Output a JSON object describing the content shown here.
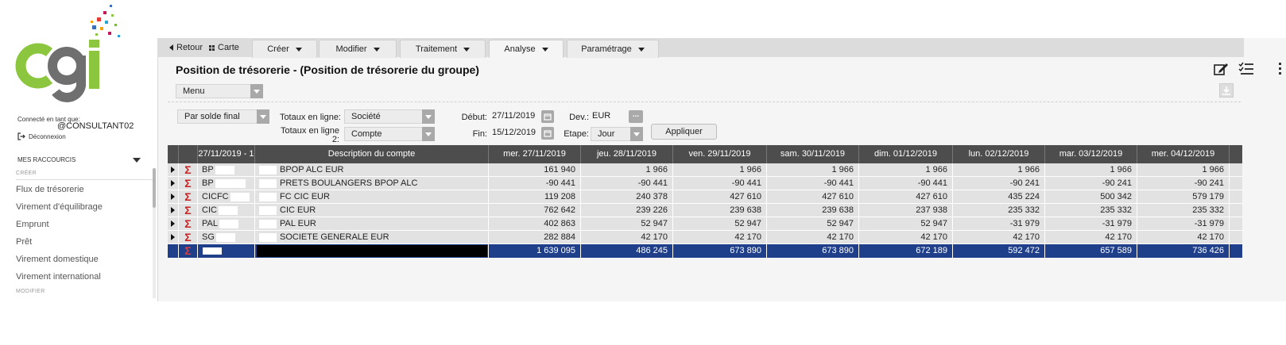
{
  "sidebar": {
    "connected_label": "Connecté en tant que:",
    "user": "@CONSULTANT02",
    "logout": "Déconnexion",
    "shortcuts_title": "MES RACCOURCIS",
    "section_create": "CRÉER",
    "links": [
      "Flux de trésorerie",
      "Virement d'équilibrage",
      "Emprunt",
      "Prêt",
      "Virement domestique",
      "Virement international"
    ],
    "section_modify": "MODIFIER"
  },
  "nav": {
    "back": "Retour",
    "carte": "Carte",
    "tabs": [
      "Créer",
      "Modifier",
      "Traitement",
      "Analyse",
      "Paramétrage"
    ]
  },
  "page": {
    "title": "Position de trésorerie - (Position de trésorerie du groupe)",
    "menu_select": "Menu"
  },
  "filters": {
    "balance_select": "Par solde final",
    "totals_line1_label": "Totaux en ligne:",
    "totals_line1_value": "Société",
    "totals_line2_label_a": "Totaux en ligne",
    "totals_line2_label_b": "2:",
    "totals_line2_value": "Compte",
    "start_label": "Début:",
    "start_value": "27/11/2019",
    "end_label": "Fin:",
    "end_value": "15/12/2019",
    "currency_label": "Dev.:",
    "currency_value": "EUR",
    "step_label": "Etape:",
    "step_value": "Jour",
    "dots": "...",
    "apply": "Appliquer"
  },
  "table": {
    "headers": [
      "27/11/2019 - 1",
      "Description du compte",
      "mer. 27/11/2019",
      "jeu. 28/11/2019",
      "ven. 29/11/2019",
      "sam. 30/11/2019",
      "dim. 01/12/2019",
      "lun. 02/12/2019",
      "mar. 03/12/2019",
      "mer. 04/12/2019"
    ],
    "rows": [
      {
        "code": "BP",
        "desc": "BPOP ALC EUR",
        "values": [
          "161 940",
          "1 966",
          "1 966",
          "1 966",
          "1 966",
          "1 966",
          "1 966",
          "1 966"
        ]
      },
      {
        "code": "BP",
        "desc": "PRETS BOULANGERS BPOP ALC",
        "values": [
          "-90 441",
          "-90 441",
          "-90 441",
          "-90 441",
          "-90 441",
          "-90 241",
          "-90 241",
          "-90 241"
        ]
      },
      {
        "code": "CICFC",
        "desc": "FC CIC EUR",
        "values": [
          "119 208",
          "240 378",
          "427 610",
          "427 610",
          "427 610",
          "435 224",
          "500 342",
          "579 179"
        ]
      },
      {
        "code": "CIC",
        "desc": "CIC EUR",
        "values": [
          "762 642",
          "239 226",
          "239 638",
          "239 638",
          "237 938",
          "235 332",
          "235 332",
          "235 332"
        ]
      },
      {
        "code": "PAL",
        "desc": "PAL EUR",
        "values": [
          "402 863",
          "52 947",
          "52 947",
          "52 947",
          "52 947",
          "-31 979",
          "-31 979",
          "-31 979"
        ]
      },
      {
        "code": "SG",
        "desc": "SOCIETE GENERALE EUR",
        "values": [
          "282 884",
          "42 170",
          "42 170",
          "42 170",
          "42 170",
          "42 170",
          "42 170",
          "42 170"
        ]
      }
    ],
    "total": [
      "1 639 095",
      "486 245",
      "673 890",
      "673 890",
      "672 189",
      "592 472",
      "657 589",
      "736 426"
    ],
    "sigma": "Σ"
  },
  "colors": {
    "total_row": "#1f3f8a",
    "header_row": "#4d4d4d",
    "sigma": "#cc1f1f",
    "logo_green": "#8cc63e",
    "logo_gray": "#6f6f6f"
  }
}
